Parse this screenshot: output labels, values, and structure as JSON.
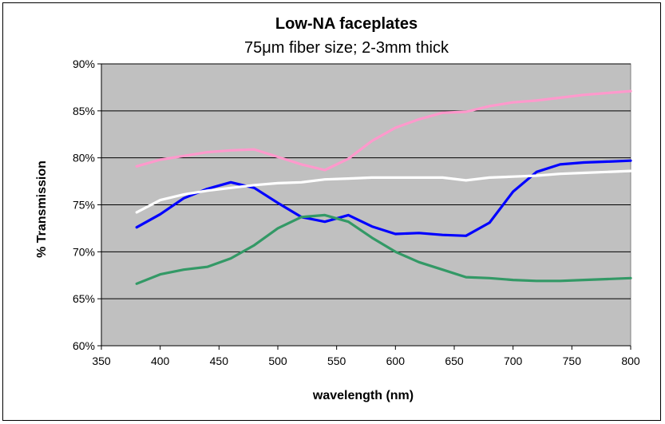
{
  "chart_data": {
    "type": "line",
    "title": "Low-NA  faceplates",
    "subtitle": "75μm fiber size; 2-3mm thick",
    "xlabel": "wavelength (nm)",
    "ylabel": "% Transmission",
    "xlim": [
      350,
      800
    ],
    "ylim": [
      60,
      90
    ],
    "x_ticks": [
      "350",
      "400",
      "450",
      "500",
      "550",
      "600",
      "650",
      "700",
      "750",
      "800"
    ],
    "y_ticks": [
      "60%",
      "65%",
      "70%",
      "75%",
      "80%",
      "85%",
      "90%"
    ],
    "x_tick_values": [
      350,
      400,
      450,
      500,
      550,
      600,
      650,
      700,
      750,
      800
    ],
    "y_tick_values": [
      60,
      65,
      70,
      75,
      80,
      85,
      90
    ],
    "plot_background": "#c0c0c0",
    "grid": "horizontal",
    "x": [
      380,
      400,
      420,
      440,
      460,
      480,
      500,
      520,
      540,
      560,
      580,
      600,
      620,
      640,
      660,
      680,
      700,
      720,
      740,
      760,
      780,
      800
    ],
    "series": [
      {
        "color": "#ff99cc",
        "values": [
          79.1,
          79.8,
          80.2,
          80.6,
          80.8,
          80.9,
          80.1,
          79.3,
          78.7,
          79.9,
          81.8,
          83.2,
          84.1,
          84.8,
          84.9,
          85.5,
          85.9,
          86.1,
          86.4,
          86.7,
          86.9,
          87.1
        ]
      },
      {
        "color": "#0000ff",
        "values": [
          72.6,
          74.0,
          75.7,
          76.7,
          77.4,
          76.8,
          75.2,
          73.7,
          73.2,
          73.9,
          72.7,
          71.9,
          72.0,
          71.8,
          71.7,
          73.1,
          76.4,
          78.5,
          79.3,
          79.5,
          79.6,
          79.7
        ]
      },
      {
        "color": "#ffffff",
        "values": [
          74.2,
          75.5,
          76.1,
          76.5,
          76.8,
          77.1,
          77.3,
          77.4,
          77.7,
          77.8,
          77.9,
          77.9,
          77.9,
          77.9,
          77.6,
          77.9,
          78.0,
          78.1,
          78.3,
          78.4,
          78.5,
          78.6
        ]
      },
      {
        "color": "#339966",
        "values": [
          66.6,
          67.6,
          68.1,
          68.4,
          69.3,
          70.7,
          72.5,
          73.7,
          73.9,
          73.2,
          71.5,
          70.0,
          68.9,
          68.1,
          67.3,
          67.2,
          67.0,
          66.9,
          66.9,
          67.0,
          67.1,
          67.2
        ]
      }
    ]
  }
}
